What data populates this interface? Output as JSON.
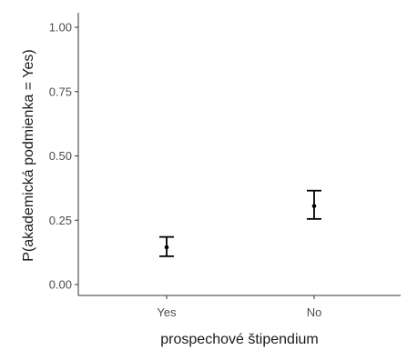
{
  "chart_data": {
    "type": "scatter",
    "title": "",
    "xlabel": "prospechové štipendium",
    "ylabel": "P(akademická podmienka = Yes)",
    "categories": [
      "Yes",
      "No"
    ],
    "ylim": [
      0,
      1
    ],
    "yticks": [
      0.0,
      0.25,
      0.5,
      0.75,
      1.0
    ],
    "ytick_labels": [
      "0.00",
      "0.25",
      "0.50",
      "0.75",
      "1.00"
    ],
    "grid": false,
    "series": [
      {
        "points": [
          {
            "x": "Yes",
            "y": 0.145,
            "lower": 0.11,
            "upper": 0.185
          },
          {
            "x": "No",
            "y": 0.305,
            "lower": 0.255,
            "upper": 0.365
          }
        ]
      }
    ]
  }
}
